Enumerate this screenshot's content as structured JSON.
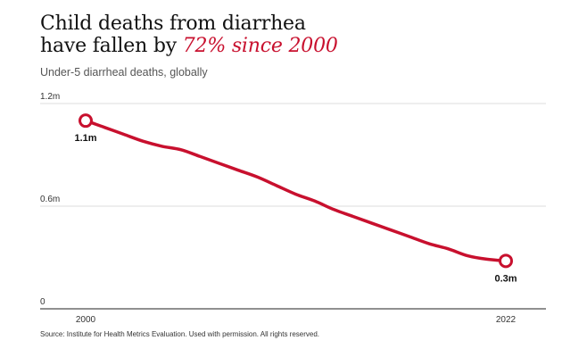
{
  "header": {
    "title_line1": "Child deaths from diarrhea",
    "title_line2_prefix": "have fallen by ",
    "title_line2_highlight": "72% since 2000",
    "subtitle": "Under-5 diarrheal deaths, globally"
  },
  "footer": {
    "source": "Source: Institute for Health Metrics Evaluation. Used with permission. All rights reserved."
  },
  "colors": {
    "accent": "#c8102e",
    "gridline": "#dddddd",
    "axis": "#222222"
  },
  "chart_data": {
    "type": "line",
    "title": "Child deaths from diarrhea have fallen by 72% since 2000",
    "subtitle": "Under-5 diarrheal deaths, globally",
    "xlabel": "",
    "ylabel": "",
    "xlim": [
      2000,
      2022
    ],
    "ylim": [
      0,
      1.2
    ],
    "x_ticks": [
      {
        "value": 2000,
        "label": "2000"
      },
      {
        "value": 2022,
        "label": "2022"
      }
    ],
    "y_ticks": [
      {
        "value": 0,
        "label": "0"
      },
      {
        "value": 0.6,
        "label": "0.6m"
      },
      {
        "value": 1.2,
        "label": "1.2m"
      }
    ],
    "grid": true,
    "legend": "none",
    "series": [
      {
        "x": [
          2000,
          2001,
          2002,
          2003,
          2004,
          2005,
          2006,
          2007,
          2008,
          2009,
          2010,
          2011,
          2012,
          2013,
          2014,
          2015,
          2016,
          2017,
          2018,
          2019,
          2020,
          2021,
          2022
        ],
        "y": [
          1.1,
          1.06,
          1.02,
          0.98,
          0.95,
          0.93,
          0.89,
          0.85,
          0.81,
          0.77,
          0.72,
          0.67,
          0.63,
          0.58,
          0.54,
          0.5,
          0.46,
          0.42,
          0.38,
          0.35,
          0.31,
          0.29,
          0.28
        ]
      }
    ],
    "annotations": [
      {
        "x": 2000,
        "y": 1.1,
        "label": "1.1m"
      },
      {
        "x": 2022,
        "y": 0.28,
        "label": "0.3m"
      }
    ]
  }
}
